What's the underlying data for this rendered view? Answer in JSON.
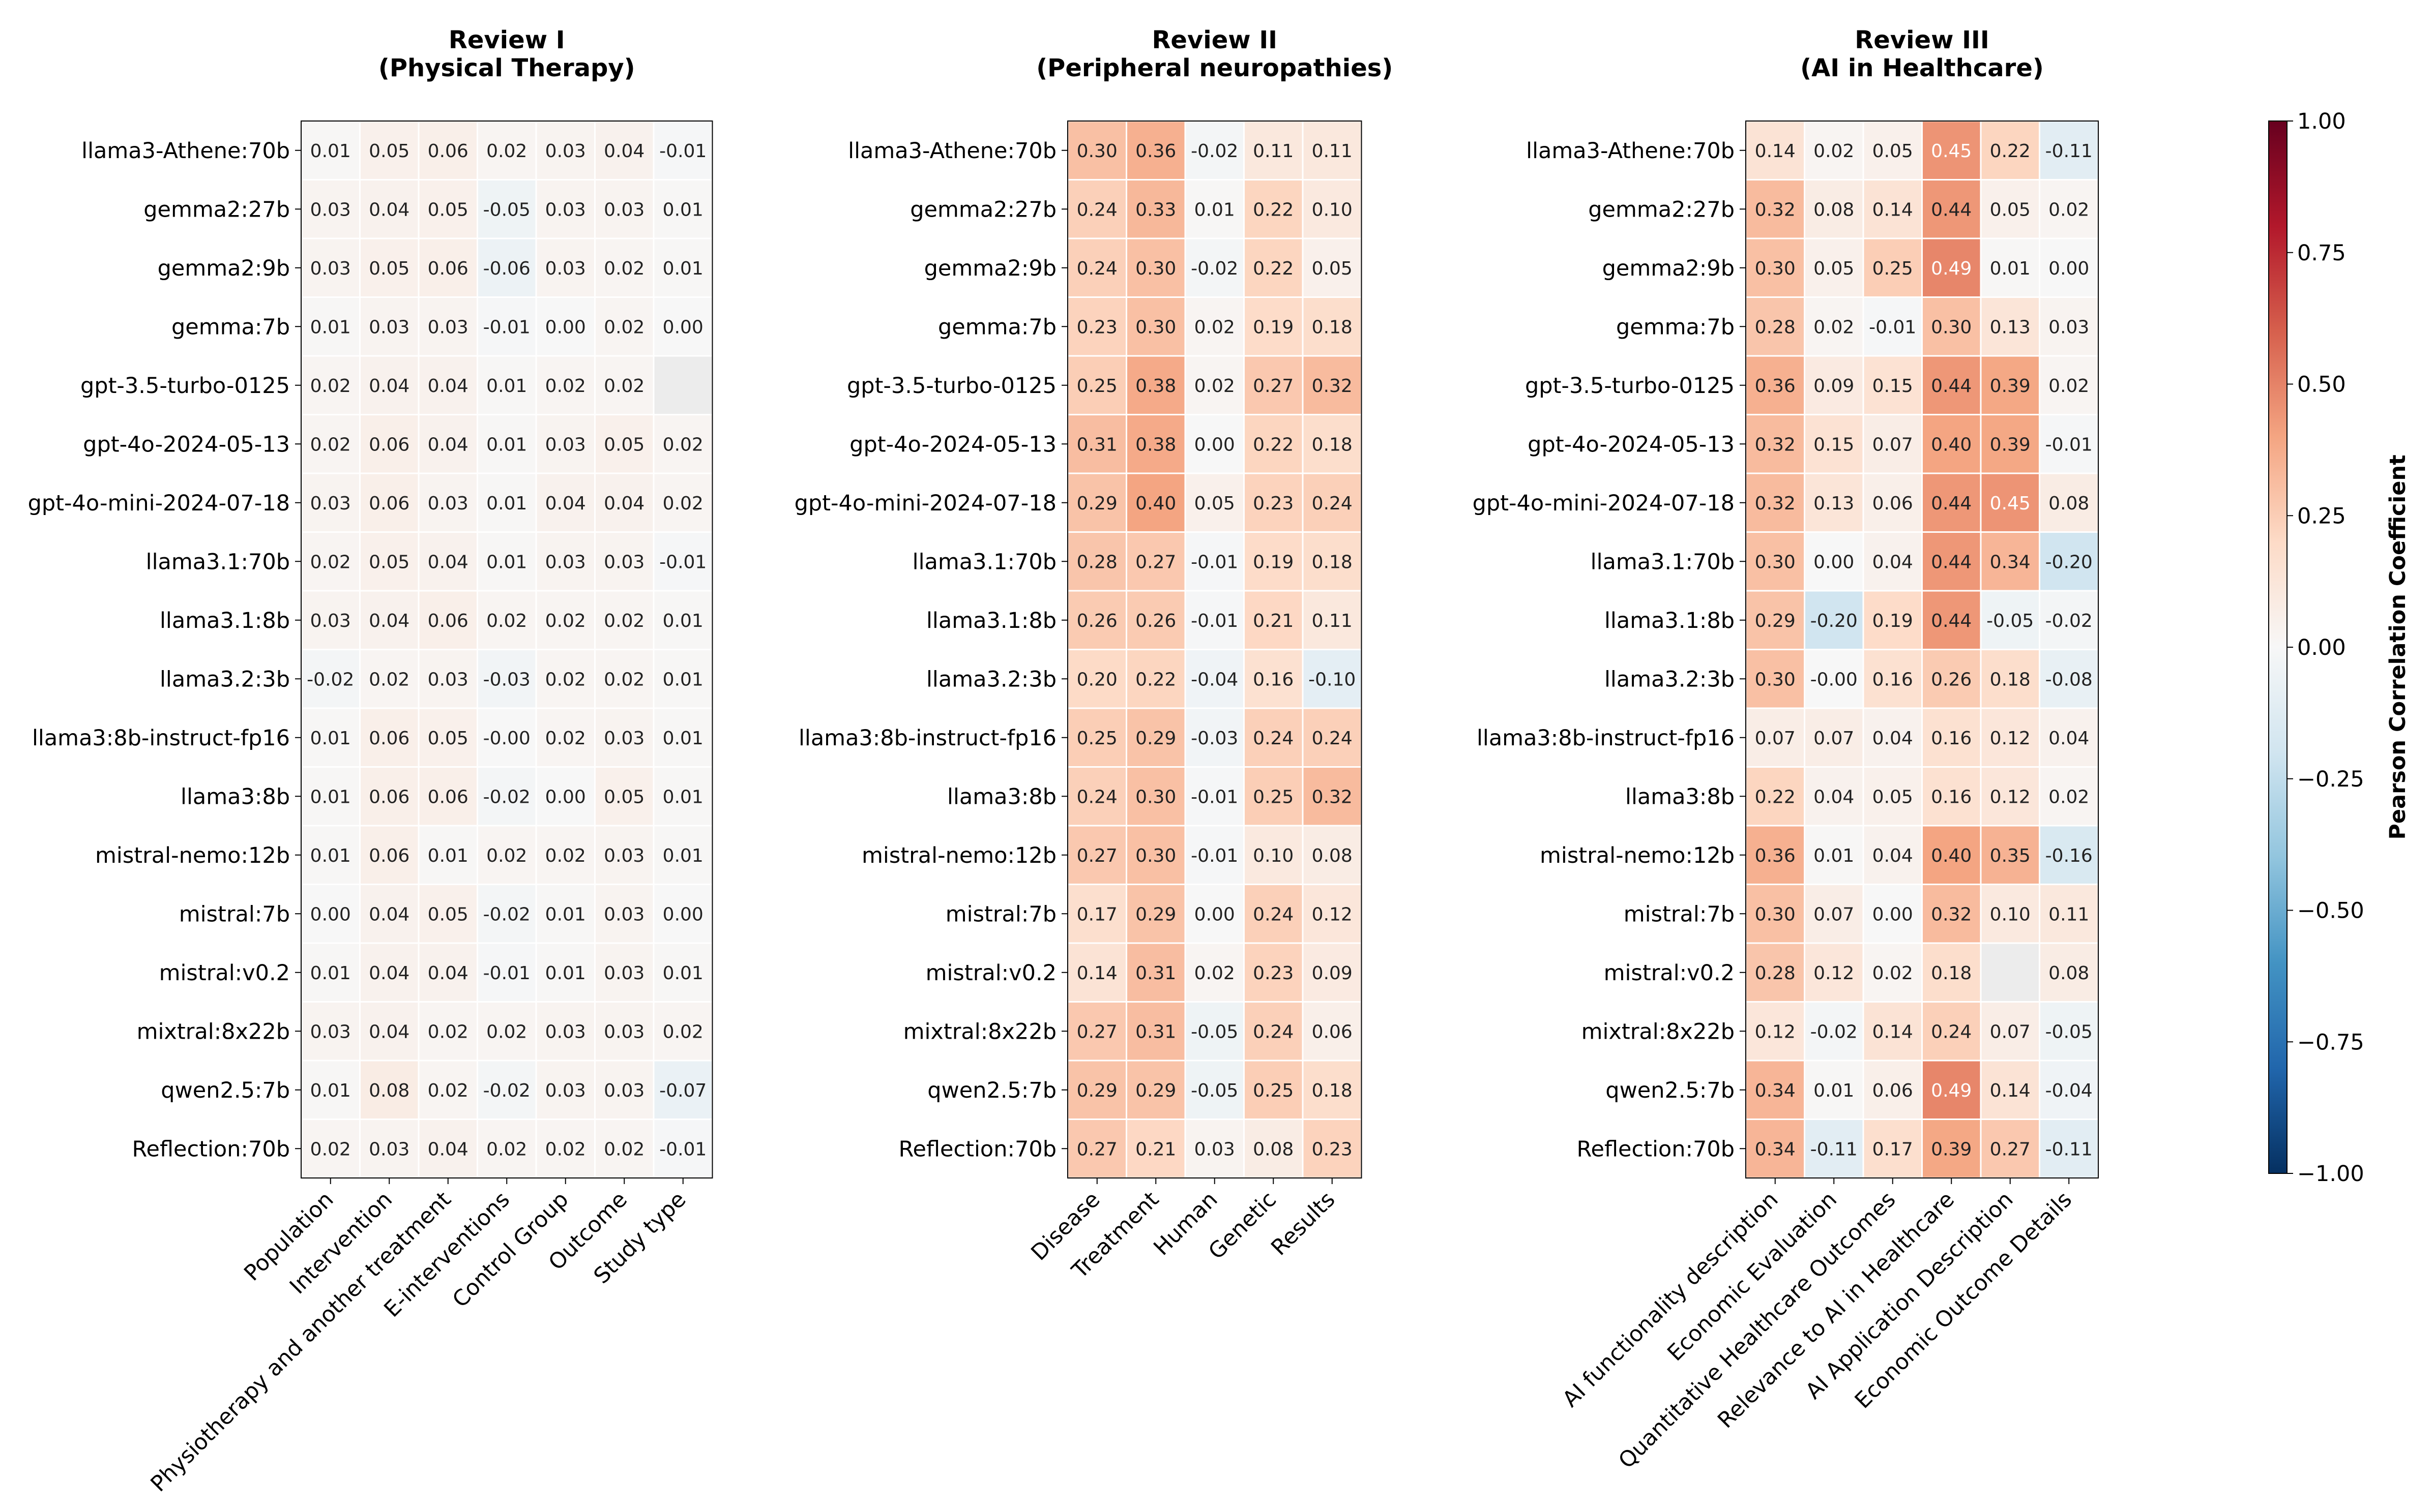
{
  "chart_data": [
    {
      "type": "heatmap",
      "title": "Review I\n(Physical Therapy)",
      "rows": [
        "llama3-Athene:70b",
        "gemma2:27b",
        "gemma2:9b",
        "gemma:7b",
        "gpt-3.5-turbo-0125",
        "gpt-4o-2024-05-13",
        "gpt-4o-mini-2024-07-18",
        "llama3.1:70b",
        "llama3.1:8b",
        "llama3.2:3b",
        "llama3:8b-instruct-fp16",
        "llama3:8b",
        "mistral-nemo:12b",
        "mistral:7b",
        "mistral:v0.2",
        "mixtral:8x22b",
        "qwen2.5:7b",
        "Reflection:70b"
      ],
      "columns": [
        "Population",
        "Intervention",
        "Physiotherapy and another treatment",
        "E-interventions",
        "Control Group",
        "Outcome",
        "Study type"
      ],
      "values": [
        [
          "0.01",
          "0.05",
          "0.06",
          "0.02",
          "0.03",
          "0.04",
          "-0.01"
        ],
        [
          "0.03",
          "0.04",
          "0.05",
          "-0.05",
          "0.03",
          "0.03",
          "0.01"
        ],
        [
          "0.03",
          "0.05",
          "0.06",
          "-0.06",
          "0.03",
          "0.02",
          "0.01"
        ],
        [
          "0.01",
          "0.03",
          "0.03",
          "-0.01",
          "0.00",
          "0.02",
          "0.00"
        ],
        [
          "0.02",
          "0.04",
          "0.04",
          "0.01",
          "0.02",
          "0.02",
          null
        ],
        [
          "0.02",
          "0.06",
          "0.04",
          "0.01",
          "0.03",
          "0.05",
          "0.02"
        ],
        [
          "0.03",
          "0.06",
          "0.03",
          "0.01",
          "0.04",
          "0.04",
          "0.02"
        ],
        [
          "0.02",
          "0.05",
          "0.04",
          "0.01",
          "0.03",
          "0.03",
          "-0.01"
        ],
        [
          "0.03",
          "0.04",
          "0.06",
          "0.02",
          "0.02",
          "0.02",
          "0.01"
        ],
        [
          "-0.02",
          "0.02",
          "0.03",
          "-0.03",
          "0.02",
          "0.02",
          "0.01"
        ],
        [
          "0.01",
          "0.06",
          "0.05",
          "-0.00",
          "0.02",
          "0.03",
          "0.01"
        ],
        [
          "0.01",
          "0.06",
          "0.06",
          "-0.02",
          "0.00",
          "0.05",
          "0.01"
        ],
        [
          "0.01",
          "0.06",
          "0.01",
          "0.02",
          "0.02",
          "0.03",
          "0.01"
        ],
        [
          "0.00",
          "0.04",
          "0.05",
          "-0.02",
          "0.01",
          "0.03",
          "0.00"
        ],
        [
          "0.01",
          "0.04",
          "0.04",
          "-0.01",
          "0.01",
          "0.03",
          "0.01"
        ],
        [
          "0.03",
          "0.04",
          "0.02",
          "0.02",
          "0.03",
          "0.03",
          "0.02"
        ],
        [
          "0.01",
          "0.08",
          "0.02",
          "-0.02",
          "0.03",
          "0.03",
          "-0.07"
        ],
        [
          "0.02",
          "0.03",
          "0.04",
          "0.02",
          "0.02",
          "0.02",
          "-0.01"
        ]
      ]
    },
    {
      "type": "heatmap",
      "title": "Review II\n(Peripheral neuropathies)",
      "rows": [
        "llama3-Athene:70b",
        "gemma2:27b",
        "gemma2:9b",
        "gemma:7b",
        "gpt-3.5-turbo-0125",
        "gpt-4o-2024-05-13",
        "gpt-4o-mini-2024-07-18",
        "llama3.1:70b",
        "llama3.1:8b",
        "llama3.2:3b",
        "llama3:8b-instruct-fp16",
        "llama3:8b",
        "mistral-nemo:12b",
        "mistral:7b",
        "mistral:v0.2",
        "mixtral:8x22b",
        "qwen2.5:7b",
        "Reflection:70b"
      ],
      "columns": [
        "Disease",
        "Treatment",
        "Human",
        "Genetic",
        "Results"
      ],
      "values": [
        [
          "0.30",
          "0.36",
          "-0.02",
          "0.11",
          "0.11"
        ],
        [
          "0.24",
          "0.33",
          "0.01",
          "0.22",
          "0.10"
        ],
        [
          "0.24",
          "0.30",
          "-0.02",
          "0.22",
          "0.05"
        ],
        [
          "0.23",
          "0.30",
          "0.02",
          "0.19",
          "0.18"
        ],
        [
          "0.25",
          "0.38",
          "0.02",
          "0.27",
          "0.32"
        ],
        [
          "0.31",
          "0.38",
          "0.00",
          "0.22",
          "0.18"
        ],
        [
          "0.29",
          "0.40",
          "0.05",
          "0.23",
          "0.24"
        ],
        [
          "0.28",
          "0.27",
          "-0.01",
          "0.19",
          "0.18"
        ],
        [
          "0.26",
          "0.26",
          "-0.01",
          "0.21",
          "0.11"
        ],
        [
          "0.20",
          "0.22",
          "-0.04",
          "0.16",
          "-0.10"
        ],
        [
          "0.25",
          "0.29",
          "-0.03",
          "0.24",
          "0.24"
        ],
        [
          "0.24",
          "0.30",
          "-0.01",
          "0.25",
          "0.32"
        ],
        [
          "0.27",
          "0.30",
          "-0.01",
          "0.10",
          "0.08"
        ],
        [
          "0.17",
          "0.29",
          "0.00",
          "0.24",
          "0.12"
        ],
        [
          "0.14",
          "0.31",
          "0.02",
          "0.23",
          "0.09"
        ],
        [
          "0.27",
          "0.31",
          "-0.05",
          "0.24",
          "0.06"
        ],
        [
          "0.29",
          "0.29",
          "-0.05",
          "0.25",
          "0.18"
        ],
        [
          "0.27",
          "0.21",
          "0.03",
          "0.08",
          "0.23"
        ]
      ]
    },
    {
      "type": "heatmap",
      "title": "Review III\n(AI in Healthcare)",
      "rows": [
        "llama3-Athene:70b",
        "gemma2:27b",
        "gemma2:9b",
        "gemma:7b",
        "gpt-3.5-turbo-0125",
        "gpt-4o-2024-05-13",
        "gpt-4o-mini-2024-07-18",
        "llama3.1:70b",
        "llama3.1:8b",
        "llama3.2:3b",
        "llama3:8b-instruct-fp16",
        "llama3:8b",
        "mistral-nemo:12b",
        "mistral:7b",
        "mistral:v0.2",
        "mixtral:8x22b",
        "qwen2.5:7b",
        "Reflection:70b"
      ],
      "columns": [
        "AI functionality description",
        "Economic Evaluation",
        "Quantitative Healthcare Outcomes",
        "Relevance to AI in Healthcare",
        "AI Application Description",
        "Economic Outcome Details"
      ],
      "values": [
        [
          "0.14",
          "0.02",
          "0.05",
          "0.45",
          "0.22",
          "-0.11"
        ],
        [
          "0.32",
          "0.08",
          "0.14",
          "0.44",
          "0.05",
          "0.02"
        ],
        [
          "0.30",
          "0.05",
          "0.25",
          "0.49",
          "0.01",
          "0.00"
        ],
        [
          "0.28",
          "0.02",
          "-0.01",
          "0.30",
          "0.13",
          "0.03"
        ],
        [
          "0.36",
          "0.09",
          "0.15",
          "0.44",
          "0.39",
          "0.02"
        ],
        [
          "0.32",
          "0.15",
          "0.07",
          "0.40",
          "0.39",
          "-0.01"
        ],
        [
          "0.32",
          "0.13",
          "0.06",
          "0.44",
          "0.45",
          "0.08"
        ],
        [
          "0.30",
          "0.00",
          "0.04",
          "0.44",
          "0.34",
          "-0.20"
        ],
        [
          "0.29",
          "-0.20",
          "0.19",
          "0.44",
          "-0.05",
          "-0.02"
        ],
        [
          "0.30",
          "-0.00",
          "0.16",
          "0.26",
          "0.18",
          "-0.08"
        ],
        [
          "0.07",
          "0.07",
          "0.04",
          "0.16",
          "0.12",
          "0.04"
        ],
        [
          "0.22",
          "0.04",
          "0.05",
          "0.16",
          "0.12",
          "0.02"
        ],
        [
          "0.36",
          "0.01",
          "0.04",
          "0.40",
          "0.35",
          "-0.16"
        ],
        [
          "0.30",
          "0.07",
          "0.00",
          "0.32",
          "0.10",
          "0.11"
        ],
        [
          "0.28",
          "0.12",
          "0.02",
          "0.18",
          null,
          "0.08"
        ],
        [
          "0.12",
          "-0.02",
          "0.14",
          "0.24",
          "0.07",
          "-0.05"
        ],
        [
          "0.34",
          "0.01",
          "0.06",
          "0.49",
          "0.14",
          "-0.04"
        ],
        [
          "0.34",
          "-0.11",
          "0.17",
          "0.39",
          "0.27",
          "-0.11"
        ]
      ]
    }
  ],
  "colorbar": {
    "label": "Pearson Correlation Coefficient",
    "range": [
      -1,
      1
    ],
    "ticks": [
      "1.00",
      "0.75",
      "0.50",
      "0.25",
      "0.00",
      "−0.25",
      "−0.50",
      "−0.75",
      "−1.00"
    ],
    "tick_values": [
      1,
      0.75,
      0.5,
      0.25,
      0,
      -0.25,
      -0.5,
      -0.75,
      -1
    ],
    "colormap": "RdBu_r",
    "missing_color": "#ececec"
  }
}
